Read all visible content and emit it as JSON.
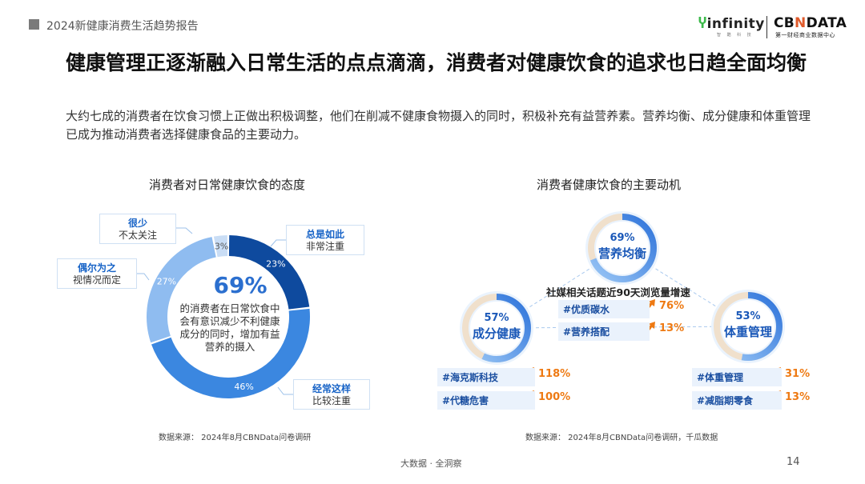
{
  "header": {
    "report_title": "2024新健康消费生活趋势报告",
    "logo_infinity": "infinity",
    "logo_infinity_sub": "智 酷 科 技",
    "logo_cbn_prefix": "CB",
    "logo_cbn_mid": "N",
    "logo_cbn_suffix": "DATA",
    "logo_cbn_sub": "第一财经商业数据中心"
  },
  "headline": "健康管理正逐渐融入日常生活的点点滴滴，消费者对健康饮食的追求也日趋全面均衡",
  "subline": "大约七成的消费者在饮食习惯上正做出积极调整，他们在削减不健康食物摄入的同时，积极补充有益营养素。营养均衡、成分健康和体重管理已成为推动消费者选择健康食品的主要动力。",
  "colors": {
    "dark_blue": "#0e4a9e",
    "mid_blue": "#3b87e0",
    "light_blue": "#8fbcf0",
    "pale_blue": "#c9ddf5",
    "orange": "#ee7a13"
  },
  "chart_data": [
    {
      "type": "pie",
      "title": "消费者对日常健康饮食的态度",
      "center_value": "69%",
      "center_text": [
        "的消费者在日常饮食中",
        "会有意识减少不利健康",
        "成分的同时，增加有益",
        "营养的摄入"
      ],
      "slices": [
        {
          "label_strong": "总是如此",
          "label": "非常注重",
          "value": 23,
          "display": "23%",
          "color": "#0e4a9e"
        },
        {
          "label_strong": "经常这样",
          "label": "比较注重",
          "value": 46,
          "display": "46%",
          "color": "#3b87e0"
        },
        {
          "label_strong": "偶尔为之",
          "label": "视情况而定",
          "value": 27,
          "display": "27%",
          "color": "#8fbcf0"
        },
        {
          "label_strong": "很少",
          "label": "不太关注",
          "value": 3,
          "display": "3%",
          "color": "#c9ddf5"
        }
      ],
      "source": "数据来源： 2024年8月CBNData问卷调研"
    },
    {
      "type": "diagram",
      "title": "消费者健康饮食的主要动机",
      "growth_title": "社媒相关话题近90天浏览量增速",
      "motives": [
        {
          "label": "营养均衡",
          "value": 69,
          "display": "69%",
          "tags": [
            {
              "name": "#优质碳水",
              "growth": "76%"
            },
            {
              "name": "#营养搭配",
              "growth": "13%"
            }
          ]
        },
        {
          "label": "成分健康",
          "value": 57,
          "display": "57%",
          "tags": [
            {
              "name": "#海克斯科技",
              "growth": "118%"
            },
            {
              "name": "#代糖危害",
              "growth": "100%"
            }
          ]
        },
        {
          "label": "体重管理",
          "value": 53,
          "display": "53%",
          "tags": [
            {
              "name": "#体重管理",
              "growth": "31%"
            },
            {
              "name": "#减脂期零食",
              "growth": "13%"
            }
          ]
        }
      ],
      "source": "数据来源： 2024年8月CBNData问卷调研，千瓜数据"
    }
  ],
  "footer": {
    "center": "大数据 · 全洞察",
    "page": "14"
  }
}
